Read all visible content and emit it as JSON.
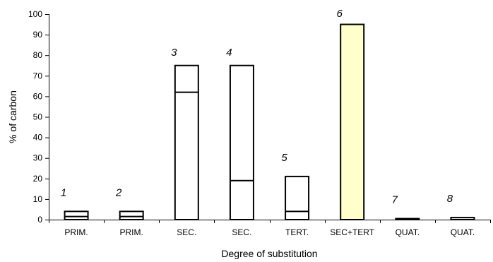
{
  "chart_data": {
    "type": "bar",
    "title": "",
    "xlabel": "Degree of substitution",
    "ylabel": "% of carbon",
    "ylim": [
      0,
      100
    ],
    "y_ticks": [
      0,
      10,
      20,
      30,
      40,
      50,
      60,
      70,
      80,
      90,
      100
    ],
    "grid": false,
    "legend": "none",
    "categories": [
      "PRIM.",
      "PRIM.",
      "SEC.",
      "SEC.",
      "TERT.",
      "SEC+TERT",
      "QUAT.",
      "QUAT."
    ],
    "bars": [
      {
        "category": "PRIM.",
        "label": "1",
        "total": 4,
        "split": 1.5,
        "fill": "#ffffff"
      },
      {
        "category": "PRIM.",
        "label": "2",
        "total": 4,
        "split": 1.5,
        "fill": "#ffffff"
      },
      {
        "category": "SEC.",
        "label": "3",
        "total": 75,
        "split": 62,
        "fill": "#ffffff"
      },
      {
        "category": "SEC.",
        "label": "4",
        "total": 75,
        "split": 19,
        "fill": "#ffffff"
      },
      {
        "category": "TERT.",
        "label": "5",
        "total": 21,
        "split": 4,
        "fill": "#ffffff"
      },
      {
        "category": "SEC+TERT",
        "label": "6",
        "total": 95,
        "split": null,
        "fill": "#ffffcc"
      },
      {
        "category": "QUAT.",
        "label": "7",
        "total": 0.5,
        "split": null,
        "fill": "#ffffff"
      },
      {
        "category": "QUAT.",
        "label": "8",
        "total": 1,
        "split": null,
        "fill": "#ffffff"
      }
    ]
  }
}
